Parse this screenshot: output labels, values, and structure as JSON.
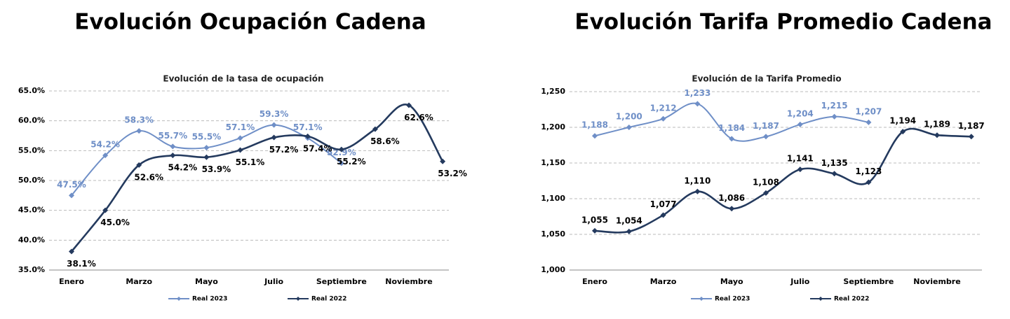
{
  "chart_data": [
    {
      "type": "line",
      "heading": "Evolución Ocupación Cadena",
      "title": "Evolución de la tasa de ocupación",
      "categories": [
        "Enero",
        null,
        "Marzo",
        null,
        "Mayo",
        null,
        "Julio",
        null,
        "Septiembre",
        null,
        "Noviembre",
        null
      ],
      "series": [
        {
          "name": "Real 2023",
          "color": "#6f8fc7",
          "values": [
            47.5,
            54.2,
            58.3,
            55.7,
            55.5,
            57.1,
            59.3,
            57.1,
            52.9,
            null,
            null,
            null
          ],
          "value_labels": [
            "47.5%",
            "54.2%",
            "58.3%",
            "55.7%",
            "55.5%",
            "57.1%",
            "59.3%",
            "57.1%",
            "52.9%",
            null,
            null,
            null
          ]
        },
        {
          "name": "Real 2022",
          "color": "#243a5e",
          "values": [
            38.1,
            45.0,
            52.6,
            54.2,
            53.9,
            55.1,
            57.2,
            57.4,
            55.2,
            58.6,
            62.6,
            53.2
          ],
          "value_labels": [
            "38.1%",
            "45.0%",
            "52.6%",
            "54.2%",
            "53.9%",
            "55.1%",
            "57.2%",
            "57.4%",
            "55.2%",
            "58.6%",
            "62.6%",
            "53.2%"
          ]
        }
      ],
      "ylim": [
        35,
        65
      ],
      "yticks": [
        {
          "value": 35,
          "label": "35.0%"
        },
        {
          "value": 40,
          "label": "40.0%"
        },
        {
          "value": 45,
          "label": "45.0%"
        },
        {
          "value": 50,
          "label": "50.0%"
        },
        {
          "value": 55,
          "label": "55.0%"
        },
        {
          "value": 60,
          "label": "60.0%"
        },
        {
          "value": 65,
          "label": "65.0%"
        }
      ],
      "grid": true,
      "legend": "bottom"
    },
    {
      "type": "line",
      "heading": "Evolución Tarifa Promedio Cadena",
      "title": "Evolución de la Tarifa Promedio",
      "categories": [
        "Enero",
        null,
        "Marzo",
        null,
        "Mayo",
        null,
        "Julio",
        null,
        "Septiembre",
        null,
        "Noviembre",
        null
      ],
      "series": [
        {
          "name": "Real 2023",
          "color": "#6f8fc7",
          "values": [
            1188,
            1200,
            1212,
            1233,
            1184,
            1187,
            1204,
            1215,
            1207,
            null,
            null,
            null
          ],
          "value_labels": [
            "1,188",
            "1,200",
            "1,212",
            "1,233",
            "1,184",
            "1,187",
            "1,204",
            "1,215",
            "1,207",
            null,
            null,
            null
          ]
        },
        {
          "name": "Real 2022",
          "color": "#243a5e",
          "values": [
            1055,
            1054,
            1077,
            1110,
            1086,
            1108,
            1141,
            1135,
            1123,
            1194,
            1189,
            1187
          ],
          "value_labels": [
            "1,055",
            "1,054",
            "1,077",
            "1,110",
            "1,086",
            "1,108",
            "1,141",
            "1,135",
            "1,123",
            "1,194",
            "1,189",
            "1,187"
          ]
        }
      ],
      "ylim": [
        1000,
        1250
      ],
      "yticks": [
        {
          "value": 1000,
          "label": "1,000"
        },
        {
          "value": 1050,
          "label": "1,050"
        },
        {
          "value": 1100,
          "label": "1,100"
        },
        {
          "value": 1150,
          "label": "1,150"
        },
        {
          "value": 1200,
          "label": "1,200"
        },
        {
          "value": 1250,
          "label": "1,250"
        }
      ],
      "grid": true,
      "legend": "bottom"
    }
  ]
}
